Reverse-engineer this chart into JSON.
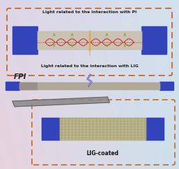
{
  "bg_tl": [
    0.87,
    0.84,
    0.91
  ],
  "bg_tr": [
    0.83,
    0.88,
    0.93
  ],
  "bg_bl": [
    0.91,
    0.83,
    0.87
  ],
  "bg_br": [
    0.8,
    0.88,
    0.93
  ],
  "blue_color": "#3344bb",
  "fiber_body_color": "#c8c0b0",
  "fiber_gray_color": "#b0a898",
  "label_top": "Light related to the interaction with PI",
  "label_bottom": "Light related to the interaction with LIG",
  "label_lig": "LIG-coated",
  "label_fpi": "FPI",
  "orange_dash_color": "#cc6622",
  "teal_dash_color": "#88aacc",
  "red_wave_color": "#cc2222",
  "gold_beam_color": "#ddaa44",
  "green_arrow_color": "#44aa44",
  "bolt_color1": "#9966cc",
  "bolt_color2": "#66aadd",
  "slab_color": "#888888",
  "lig_mesh_color": "#b8b080",
  "lig_mesh_line": "#888855"
}
